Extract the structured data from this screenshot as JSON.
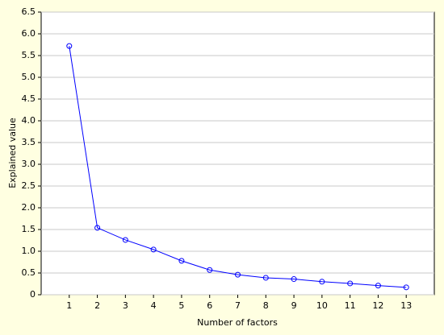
{
  "chart_data": {
    "type": "line",
    "x_label": "Number of factors",
    "y_label": "Explained value",
    "x": [
      1,
      2,
      3,
      4,
      5,
      6,
      7,
      8,
      9,
      10,
      11,
      12,
      13
    ],
    "values": [
      5.72,
      1.54,
      1.26,
      1.04,
      0.78,
      0.57,
      0.46,
      0.39,
      0.36,
      0.3,
      0.26,
      0.21,
      0.17
    ],
    "color": "#0000ff",
    "xlim": [
      0,
      14
    ],
    "xticks": [
      1,
      2,
      3,
      4,
      5,
      6,
      7,
      8,
      9,
      10,
      11,
      12,
      13
    ],
    "ylim": [
      0,
      6.5
    ],
    "yticks": [
      0,
      0.5,
      {
        "value": 1,
        "label": "1.0"
      },
      1.5,
      {
        "value": 2,
        "label": "2.0"
      },
      2.5,
      {
        "value": 3,
        "label": "3.0"
      },
      3.5,
      {
        "value": 4,
        "label": "4.0"
      },
      4.5,
      {
        "value": 5,
        "label": "5.0"
      },
      5.5,
      {
        "value": 6,
        "label": "6.0"
      },
      6.5
    ],
    "grid": true
  }
}
